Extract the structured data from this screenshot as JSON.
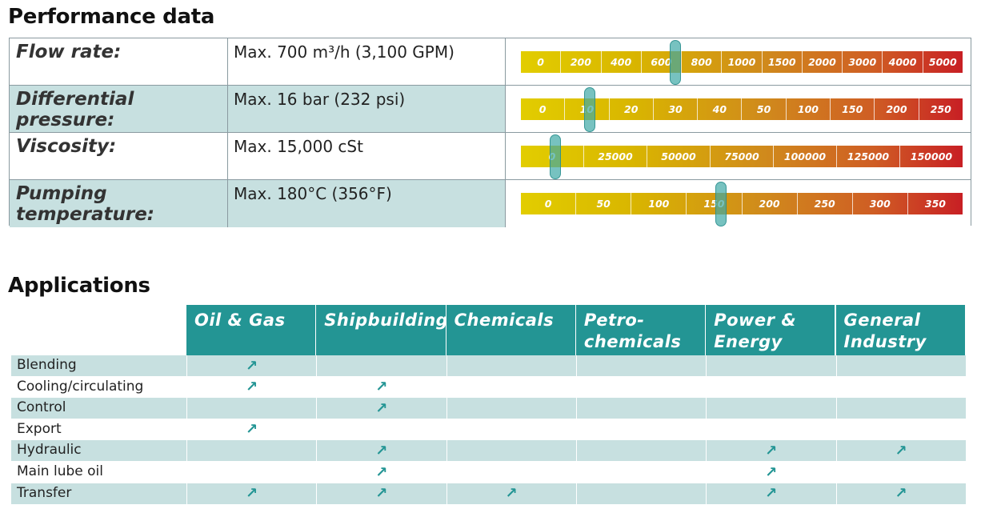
{
  "performance": {
    "title": "Performance data",
    "rows": [
      {
        "label": "Flow rate:",
        "value": "Max. 700 m³/h (3,100 GPM)",
        "ticks": [
          "0",
          "200",
          "400",
          "600",
          "800",
          "1000",
          "1500",
          "2000",
          "3000",
          "4000",
          "5000"
        ],
        "marker_tick": 3,
        "marker_frac": 0.85
      },
      {
        "label": "Differential pressure:",
        "value": "Max. 16 bar (232 psi)",
        "ticks": [
          "0",
          "10",
          "20",
          "30",
          "40",
          "50",
          "100",
          "150",
          "200",
          "250"
        ],
        "marker_tick": 1,
        "marker_frac": 0.55
      },
      {
        "label": "Viscosity:",
        "value": "Max. 15,000 cSt",
        "ticks": [
          "0",
          "25000",
          "50000",
          "75000",
          "100000",
          "125000",
          "150000"
        ],
        "marker_tick": 0,
        "marker_frac": 0.55
      },
      {
        "label": "Pumping temperature:",
        "value": "Max. 180°C (356°F)",
        "ticks": [
          "0",
          "50",
          "100",
          "150",
          "200",
          "250",
          "300",
          "350"
        ],
        "marker_tick": 3,
        "marker_frac": 0.62
      }
    ]
  },
  "applications": {
    "title": "Applications",
    "headers": [
      "Oil & Gas",
      "Shipbuilding",
      "Chemicals",
      "Petro-\nchemicals",
      "Power &\nEnergy",
      "General\nIndustry"
    ],
    "check_glyph": "↗",
    "rows": [
      {
        "label": "Blending",
        "checks": [
          true,
          false,
          false,
          false,
          false,
          false
        ]
      },
      {
        "label": "Cooling/circulating",
        "checks": [
          true,
          true,
          false,
          false,
          false,
          false
        ]
      },
      {
        "label": "Control",
        "checks": [
          false,
          true,
          false,
          false,
          false,
          false
        ]
      },
      {
        "label": "Export",
        "checks": [
          true,
          false,
          false,
          false,
          false,
          false
        ]
      },
      {
        "label": "Hydraulic",
        "checks": [
          false,
          true,
          false,
          false,
          true,
          true
        ]
      },
      {
        "label": "Main lube oil",
        "checks": [
          false,
          true,
          false,
          false,
          true,
          false
        ]
      },
      {
        "label": "Transfer",
        "checks": [
          true,
          true,
          true,
          false,
          true,
          true
        ]
      }
    ]
  }
}
